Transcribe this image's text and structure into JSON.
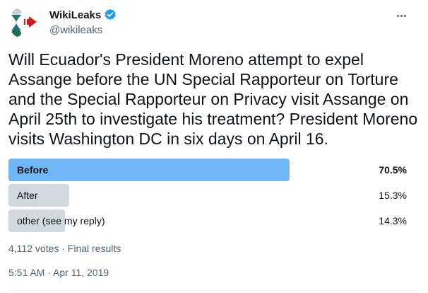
{
  "author": {
    "display_name": "WikiLeaks",
    "handle": "@wikileaks",
    "verified": true,
    "avatar_icon": "wikileaks-hourglass-logo"
  },
  "tweet": {
    "text": "Will Ecuador's President Moreno attempt to expel Assange before the UN Special Rapporteur on Torture and the Special Rapporteur on Privacy visit Assange on April 25th to investigate his treatment? President Moreno visits Washington DC in six days on April 16."
  },
  "poll": {
    "options": [
      {
        "label": "Before",
        "percent_label": "70.5%",
        "percent": 70.5,
        "winner": true
      },
      {
        "label": "After",
        "percent_label": "15.3%",
        "percent": 15.3,
        "winner": false
      },
      {
        "label": "other (see my reply)",
        "percent_label": "14.3%",
        "percent": 14.3,
        "winner": false
      }
    ],
    "summary": "4,112 votes · Final results"
  },
  "timestamp": "5:51 AM · Apr 11, 2019",
  "colors": {
    "winner_bar": "#70b7f5",
    "other_bar": "#cfd9de",
    "verified": "#1d9bf0",
    "secondary_text": "#536471"
  }
}
